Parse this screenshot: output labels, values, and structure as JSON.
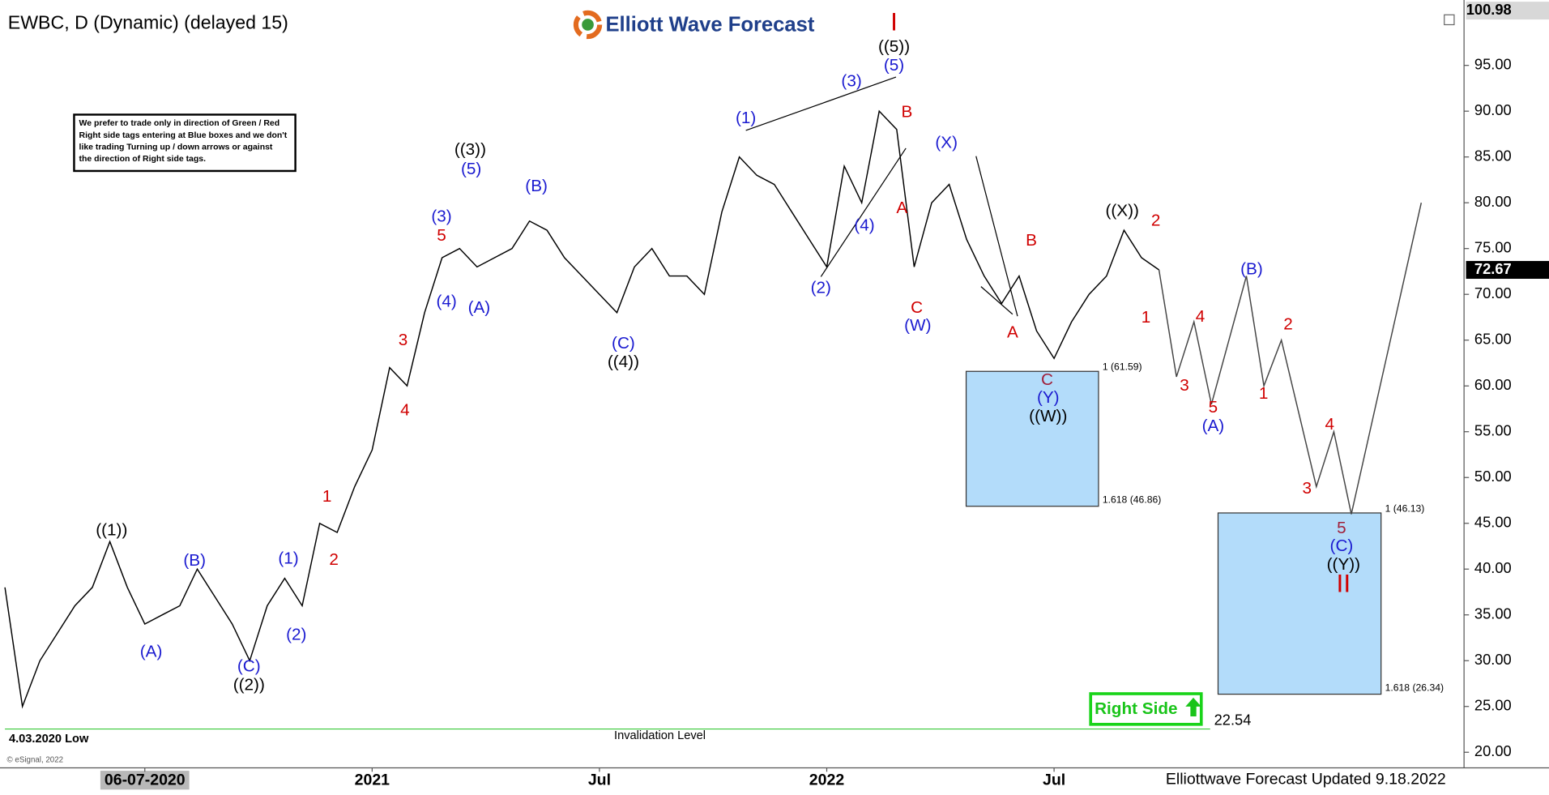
{
  "header": {
    "symbol_title": "EWBC, D (Dynamic) (delayed 15)",
    "logo": "Elliott Wave Forecast"
  },
  "note": [
    "We prefer to trade only in direction of Green / Red",
    "Right side tags entering at Blue boxes and we don't",
    "like trading Turning up / down arrows or against",
    "the direction of Right side tags."
  ],
  "low_label": "4.03.2020 Low",
  "copyright": "© eSignal, 2022",
  "right_side": "Right Side",
  "footer": "Elliottwave Forecast Updated 9.18.2022",
  "chart_data": {
    "type": "line",
    "categories": [
      null,
      null,
      null,
      null,
      null,
      null,
      null,
      null,
      "06-07-2020",
      null,
      null,
      null,
      null,
      null,
      null,
      null,
      null,
      null,
      null,
      null,
      null,
      "2021",
      null,
      null,
      null,
      null,
      null,
      null,
      null,
      null,
      null,
      null,
      null,
      null,
      "Jul",
      null,
      null,
      null,
      null,
      null,
      null,
      null,
      null,
      null,
      null,
      null,
      null,
      "2022",
      null,
      null,
      null,
      null,
      null,
      null,
      null,
      null,
      null,
      null,
      null,
      null,
      "Jul",
      null,
      null,
      null,
      null,
      null,
      null,
      null,
      null,
      null,
      null,
      null,
      null,
      null,
      null,
      null,
      null,
      null,
      null,
      null,
      null,
      null
    ],
    "series": [
      {
        "color": "#000000",
        "values": [
          38,
          25,
          30,
          33,
          36,
          38,
          43,
          38,
          34,
          35,
          36,
          40,
          37,
          34,
          30,
          36,
          39,
          36,
          45,
          44,
          49,
          53,
          62,
          60,
          68,
          74,
          75,
          73,
          74,
          75,
          78,
          77,
          74,
          72,
          70,
          68,
          73,
          75,
          72,
          72,
          70,
          79,
          85,
          83,
          82,
          79,
          76,
          73,
          84,
          80,
          90,
          88,
          73,
          80,
          82,
          76,
          72,
          69,
          72,
          66,
          63,
          67,
          70,
          72,
          77,
          74,
          72.67,
          null,
          null,
          null,
          null,
          null,
          null,
          null,
          null,
          null,
          null,
          null,
          null,
          null,
          null,
          null
        ]
      },
      {
        "color": "#444444",
        "values": [
          null,
          null,
          null,
          null,
          null,
          null,
          null,
          null,
          null,
          null,
          null,
          null,
          null,
          null,
          null,
          null,
          null,
          null,
          null,
          null,
          null,
          null,
          null,
          null,
          null,
          null,
          null,
          null,
          null,
          null,
          null,
          null,
          null,
          null,
          null,
          null,
          null,
          null,
          null,
          null,
          null,
          null,
          null,
          null,
          null,
          null,
          null,
          null,
          null,
          null,
          null,
          null,
          null,
          null,
          null,
          null,
          null,
          null,
          null,
          null,
          null,
          null,
          null,
          null,
          null,
          null,
          72.67,
          61,
          67,
          58,
          65,
          72,
          60,
          65,
          57,
          49,
          55,
          46,
          54.5,
          63,
          71.5,
          80
        ]
      }
    ],
    "ylim": [
      18.3,
      101.6
    ],
    "yticks": [
      {
        "value": 20,
        "label": "20.00"
      },
      {
        "value": 25,
        "label": "25.00"
      },
      {
        "value": 30,
        "label": "30.00"
      },
      {
        "value": 35,
        "label": "35.00"
      },
      {
        "value": 40,
        "label": "40.00"
      },
      {
        "value": 45,
        "label": "45.00"
      },
      {
        "value": 50,
        "label": "50.00"
      },
      {
        "value": 55,
        "label": "55.00"
      },
      {
        "value": 60,
        "label": "60.00"
      },
      {
        "value": 65,
        "label": "65.00"
      },
      {
        "value": 70,
        "label": "70.00"
      },
      {
        "value": 75,
        "label": "75.00"
      },
      {
        "value": 80,
        "label": "80.00"
      },
      {
        "value": 85,
        "label": "85.00"
      },
      {
        "value": 90,
        "label": "90.00"
      },
      {
        "value": 95,
        "label": "95.00"
      }
    ],
    "scale_top": 100.98,
    "last_price": 72.67,
    "invalidation": {
      "value": 22.54,
      "text": "Invalidation Level"
    },
    "boxes": [
      {
        "top": 61.59,
        "top_label": "1 (61.59)",
        "bottom": 46.86,
        "bottom_label": "1.618 (46.86)",
        "color": "#b3dcfa"
      },
      {
        "top": 46.13,
        "top_label": "1 (46.13)",
        "bottom": 26.34,
        "bottom_label": "1.618 (26.34)",
        "color": "#b3dcfa"
      }
    ],
    "annotations": [
      {
        "text": "((1))",
        "color": "#000000"
      },
      {
        "text": "((2))",
        "color": "#000000"
      },
      {
        "text": "((3))",
        "color": "#000000"
      },
      {
        "text": "((4))",
        "color": "#000000"
      },
      {
        "text": "((5))",
        "color": "#000000"
      },
      {
        "text": "((X))",
        "color": "#000000"
      },
      {
        "text": "((W))",
        "color": "#000000"
      },
      {
        "text": "((Y))",
        "color": "#000000"
      },
      {
        "text": "(A)",
        "color": "#1a1ad0"
      },
      {
        "text": "(B)",
        "color": "#1a1ad0"
      },
      {
        "text": "(C)",
        "color": "#1a1ad0"
      },
      {
        "text": "(1)",
        "color": "#1a1ad0"
      },
      {
        "text": "(2)",
        "color": "#1a1ad0"
      },
      {
        "text": "(3)",
        "color": "#1a1ad0"
      },
      {
        "text": "(5)",
        "color": "#1a1ad0"
      },
      {
        "text": "(4)",
        "color": "#1a1ad0"
      },
      {
        "text": "(A)",
        "color": "#1a1ad0"
      },
      {
        "text": "(B)",
        "color": "#1a1ad0"
      },
      {
        "text": "(C)",
        "color": "#1a1ad0"
      },
      {
        "text": "(1)",
        "color": "#1a1ad0"
      },
      {
        "text": "(2)",
        "color": "#1a1ad0"
      },
      {
        "text": "(3)",
        "color": "#1a1ad0"
      },
      {
        "text": "(5)",
        "color": "#1a1ad0"
      },
      {
        "text": "(4)",
        "color": "#1a1ad0"
      },
      {
        "text": "(X)",
        "color": "#1a1ad0"
      },
      {
        "text": "(W)",
        "color": "#1a1ad0"
      },
      {
        "text": "(Y)",
        "color": "#1a1ad0"
      },
      {
        "text": "(B)",
        "color": "#1a1ad0"
      },
      {
        "text": "(A)",
        "color": "#1a1ad0"
      },
      {
        "text": "(C)",
        "color": "#1a1ad0"
      },
      {
        "text": "1",
        "color": "#d00000"
      },
      {
        "text": "2",
        "color": "#d00000"
      },
      {
        "text": "3",
        "color": "#d00000"
      },
      {
        "text": "4",
        "color": "#d00000"
      },
      {
        "text": "5",
        "color": "#d00000"
      },
      {
        "text": "B",
        "color": "#d00000"
      },
      {
        "text": "A",
        "color": "#d00000"
      },
      {
        "text": "C",
        "color": "#d00000"
      },
      {
        "text": "B",
        "color": "#d00000"
      },
      {
        "text": "A",
        "color": "#d00000"
      },
      {
        "text": "C",
        "color": "#a0203a"
      },
      {
        "text": "2",
        "color": "#d00000"
      },
      {
        "text": "1",
        "color": "#d00000"
      },
      {
        "text": "3",
        "color": "#d00000"
      },
      {
        "text": "4",
        "color": "#d00000"
      },
      {
        "text": "5",
        "color": "#d00000"
      },
      {
        "text": "1",
        "color": "#d00000"
      },
      {
        "text": "2",
        "color": "#d00000"
      },
      {
        "text": "3",
        "color": "#d00000"
      },
      {
        "text": "4",
        "color": "#d00000"
      },
      {
        "text": "5",
        "color": "#a0203a"
      },
      {
        "text": "I",
        "color": "#d00000"
      },
      {
        "text": "II",
        "color": "#d00000"
      }
    ]
  }
}
